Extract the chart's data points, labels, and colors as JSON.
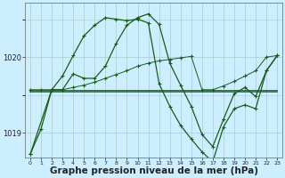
{
  "background_color": "#cceeff",
  "grid_color": "#aacccc",
  "line_color": "#1a5c1a",
  "xlabel": "Graphe pression niveau de la mer (hPa)",
  "xlabel_fontsize": 7.5,
  "xlim": [
    -0.5,
    23.5
  ],
  "ylim": [
    1018.68,
    1020.72
  ],
  "yticks": [
    1019,
    1020
  ],
  "xticks": [
    0,
    1,
    2,
    3,
    4,
    5,
    6,
    7,
    8,
    9,
    10,
    11,
    12,
    13,
    14,
    15,
    16,
    17,
    18,
    19,
    20,
    21,
    22,
    23
  ],
  "series": [
    {
      "x": [
        0,
        1,
        2,
        3,
        4,
        5,
        6,
        7,
        8,
        9,
        10,
        11,
        12,
        13,
        14,
        15,
        16,
        17,
        18,
        19,
        20,
        21,
        22,
        23
      ],
      "y": [
        1018.72,
        1019.05,
        1019.57,
        1019.57,
        1019.78,
        1019.72,
        1019.72,
        1019.88,
        1020.18,
        1020.42,
        1020.52,
        1020.57,
        1020.43,
        1019.92,
        1019.63,
        1019.35,
        1018.98,
        1018.82,
        1019.18,
        1019.52,
        1019.6,
        1019.48,
        1019.82,
        1020.02
      ],
      "marker": "+",
      "markersize": 3.5,
      "linewidth": 0.9,
      "linestyle": "-"
    },
    {
      "x": [
        0,
        1,
        2,
        3,
        4,
        5,
        6,
        7,
        8,
        9,
        10,
        11,
        12,
        13,
        14,
        15,
        16,
        17,
        18,
        19,
        20,
        21,
        22,
        23
      ],
      "y": [
        1019.57,
        1019.57,
        1019.57,
        1019.57,
        1019.6,
        1019.63,
        1019.67,
        1019.72,
        1019.77,
        1019.82,
        1019.88,
        1019.92,
        1019.95,
        1019.97,
        1019.99,
        1020.01,
        1019.57,
        1019.57,
        1019.62,
        1019.68,
        1019.75,
        1019.82,
        1020.0,
        1020.02
      ],
      "marker": "+",
      "markersize": 2.5,
      "linewidth": 0.7,
      "linestyle": "-"
    },
    {
      "x": [
        0,
        23
      ],
      "y": [
        1019.54,
        1019.54
      ],
      "marker": null,
      "markersize": 0,
      "linewidth": 1.1,
      "linestyle": "-"
    },
    {
      "x": [
        0,
        23
      ],
      "y": [
        1019.57,
        1019.57
      ],
      "marker": null,
      "markersize": 0,
      "linewidth": 0.6,
      "linestyle": "-"
    },
    {
      "x": [
        0,
        2,
        3,
        4,
        5,
        6,
        7,
        8,
        9,
        10,
        11,
        12,
        13,
        14,
        15,
        16,
        17,
        18,
        19,
        20,
        21,
        22,
        23
      ],
      "y": [
        1018.72,
        1019.57,
        1019.75,
        1020.02,
        1020.28,
        1020.42,
        1020.52,
        1020.5,
        1020.48,
        1020.5,
        1020.45,
        1019.65,
        1019.35,
        1019.1,
        1018.92,
        1018.75,
        1018.62,
        1019.08,
        1019.32,
        1019.37,
        1019.32,
        1019.82,
        1020.02
      ],
      "marker": "+",
      "markersize": 3.5,
      "linewidth": 0.9,
      "linestyle": "-"
    }
  ]
}
